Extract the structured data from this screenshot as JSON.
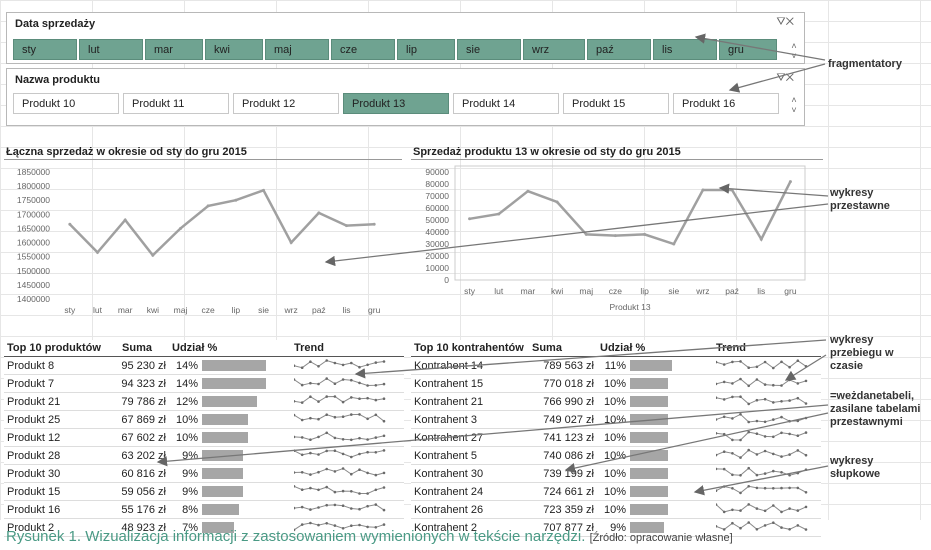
{
  "slicer_months": {
    "title": "Data sprzedaży",
    "items": [
      {
        "label": "sty",
        "selected": true
      },
      {
        "label": "lut",
        "selected": true
      },
      {
        "label": "mar",
        "selected": true
      },
      {
        "label": "kwi",
        "selected": true
      },
      {
        "label": "maj",
        "selected": true
      },
      {
        "label": "cze",
        "selected": true
      },
      {
        "label": "lip",
        "selected": true
      },
      {
        "label": "sie",
        "selected": true
      },
      {
        "label": "wrz",
        "selected": true
      },
      {
        "label": "paź",
        "selected": true
      },
      {
        "label": "lis",
        "selected": true
      },
      {
        "label": "gru",
        "selected": true
      }
    ]
  },
  "slicer_products": {
    "title": "Nazwa produktu",
    "items": [
      {
        "label": "Produkt 10",
        "selected": false
      },
      {
        "label": "Produkt 11",
        "selected": false
      },
      {
        "label": "Produkt 12",
        "selected": false
      },
      {
        "label": "Produkt 13",
        "selected": true
      },
      {
        "label": "Produkt 14",
        "selected": false
      },
      {
        "label": "Produkt 15",
        "selected": false
      },
      {
        "label": "Produkt 16",
        "selected": false
      }
    ]
  },
  "chart_data": [
    {
      "type": "line",
      "title": "Łączna sprzedaż w okresie od sty do gru 2015",
      "categories": [
        "sty",
        "lut",
        "mar",
        "kwi",
        "maj",
        "cze",
        "lip",
        "sie",
        "wrz",
        "paź",
        "lis",
        "gru"
      ],
      "values": [
        1665000,
        1565000,
        1680000,
        1555000,
        1650000,
        1730000,
        1750000,
        1785000,
        1600000,
        1705000,
        1660000,
        1665000
      ],
      "ylim": [
        1400000,
        1850000
      ],
      "yticks": [
        "1850000",
        "1800000",
        "1750000",
        "1700000",
        "1650000",
        "1600000",
        "1550000",
        "1500000",
        "1450000",
        "1400000"
      ]
    },
    {
      "type": "line",
      "title": "Sprzedaż produktu 13 w okresie od sty do gru 2015",
      "categories": [
        "sty",
        "lut",
        "mar",
        "kwi",
        "maj",
        "cze",
        "lip",
        "sie",
        "wrz",
        "paź",
        "lis",
        "gru"
      ],
      "values": [
        51000,
        55000,
        74000,
        65000,
        38000,
        37000,
        38000,
        30000,
        75000,
        75000,
        34000,
        82000
      ],
      "ylim": [
        0,
        90000
      ],
      "yticks": [
        "90000",
        "80000",
        "70000",
        "60000",
        "50000",
        "40000",
        "30000",
        "20000",
        "10000",
        "0"
      ],
      "xlabel": "Produkt 13"
    }
  ],
  "table_products": {
    "headers": [
      "Top 10 produktów",
      "Suma",
      "Udział %",
      "Trend"
    ],
    "rows": [
      {
        "name": "Produkt 8",
        "sum": "95 230 zł",
        "share": "14%",
        "pct": 14
      },
      {
        "name": "Produkt 7",
        "sum": "94 323 zł",
        "share": "14%",
        "pct": 14
      },
      {
        "name": "Produkt 21",
        "sum": "79 786 zł",
        "share": "12%",
        "pct": 12
      },
      {
        "name": "Produkt 25",
        "sum": "67 869 zł",
        "share": "10%",
        "pct": 10
      },
      {
        "name": "Produkt 12",
        "sum": "67 602 zł",
        "share": "10%",
        "pct": 10
      },
      {
        "name": "Produkt 28",
        "sum": "63 202 zł",
        "share": "9%",
        "pct": 9
      },
      {
        "name": "Produkt 30",
        "sum": "60 816 zł",
        "share": "9%",
        "pct": 9
      },
      {
        "name": "Produkt 15",
        "sum": "59 056 zł",
        "share": "9%",
        "pct": 9
      },
      {
        "name": "Produkt 16",
        "sum": "55 176 zł",
        "share": "8%",
        "pct": 8
      },
      {
        "name": "Produkt 2",
        "sum": "48 923 zł",
        "share": "7%",
        "pct": 7
      }
    ]
  },
  "table_contractors": {
    "headers": [
      "Top 10 kontrahentów",
      "Suma",
      "Udział %",
      "Trend"
    ],
    "rows": [
      {
        "name": "Kontrahent 14",
        "sum": "789 563 zł",
        "share": "11%",
        "pct": 11
      },
      {
        "name": "Kontrahent 15",
        "sum": "770 018 zł",
        "share": "10%",
        "pct": 10
      },
      {
        "name": "Kontrahent 21",
        "sum": "766 990 zł",
        "share": "10%",
        "pct": 10
      },
      {
        "name": "Kontrahent 3",
        "sum": "749 027 zł",
        "share": "10%",
        "pct": 10
      },
      {
        "name": "Kontrahent 27",
        "sum": "741 123 zł",
        "share": "10%",
        "pct": 10
      },
      {
        "name": "Kontrahent 5",
        "sum": "740 086 zł",
        "share": "10%",
        "pct": 10
      },
      {
        "name": "Kontrahent 30",
        "sum": "739 199 zł",
        "share": "10%",
        "pct": 10
      },
      {
        "name": "Kontrahent 24",
        "sum": "724 661 zł",
        "share": "10%",
        "pct": 10
      },
      {
        "name": "Kontrahent 26",
        "sum": "723 359 zł",
        "share": "10%",
        "pct": 10
      },
      {
        "name": "Kontrahent 2",
        "sum": "707 877 zł",
        "share": "9%",
        "pct": 9
      }
    ]
  },
  "annotations": {
    "slicers": "fragmentatory",
    "pivot_charts": "wykresy przestawne",
    "sparklines": "wykresy przebiegu w czasie",
    "formulas": "=weżdanetabeli, zasilane tabelami przestawnymi",
    "bars": "wykresy słupkowe"
  },
  "caption": {
    "main": "Rysunek 1. Wizualizacja informacji z zastosowaniem wymienionych w tekście narzędzi.",
    "source": "[Źródło: opracowanie własne]"
  }
}
